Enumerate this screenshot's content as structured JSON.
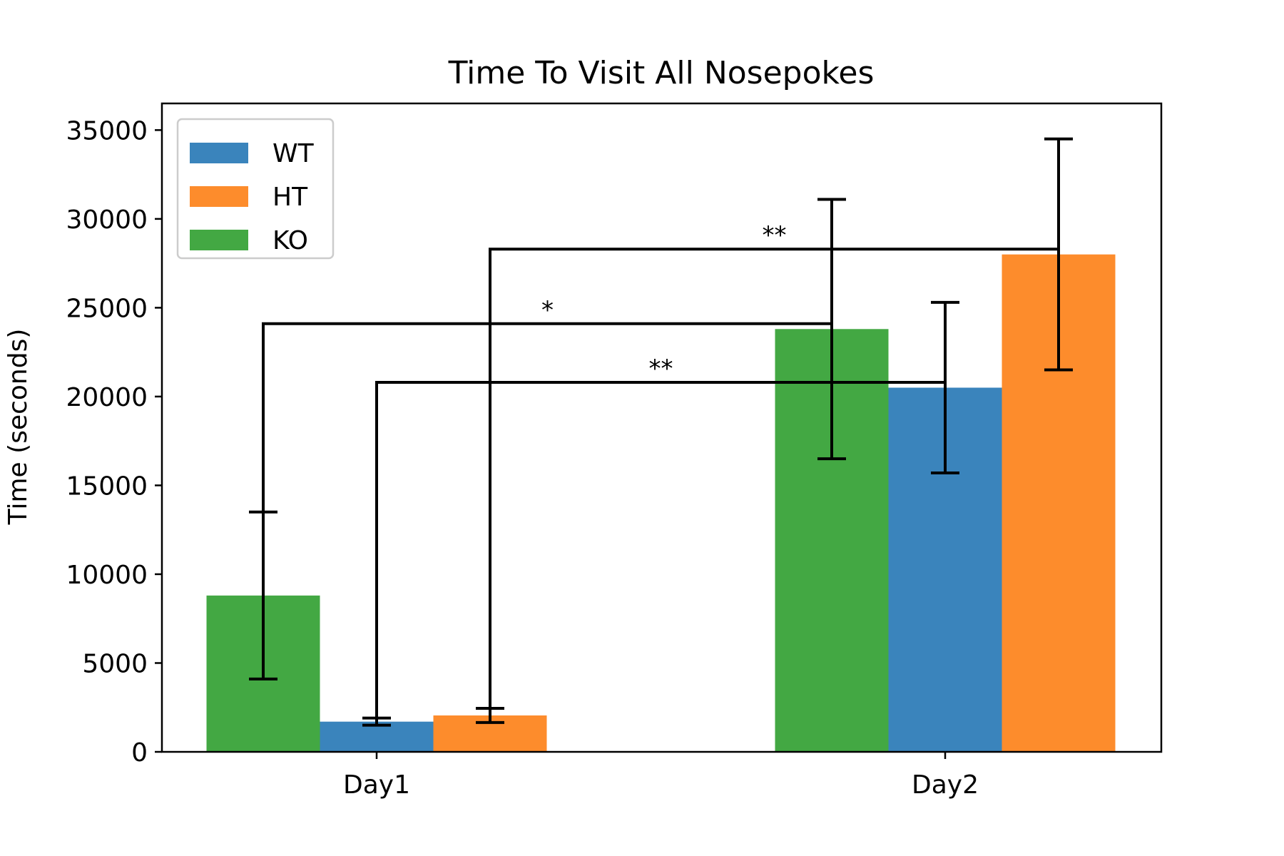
{
  "chart_data": {
    "type": "bar",
    "title": "Time To Visit All Nosepokes",
    "xlabel": "",
    "ylabel": "Time (seconds)",
    "ylim": [
      0,
      36500
    ],
    "yticks": [
      0,
      5000,
      10000,
      15000,
      20000,
      25000,
      30000,
      35000
    ],
    "categories": [
      "Day1",
      "Day2"
    ],
    "series": [
      {
        "name": "KO",
        "color": "#43a843",
        "values": [
          8800,
          23800
        ],
        "errors": [
          4700,
          7300
        ]
      },
      {
        "name": "WT",
        "color": "#3a84bc",
        "values": [
          1700,
          20500
        ],
        "errors": [
          200,
          4800
        ]
      },
      {
        "name": "HT",
        "color": "#fd8c2c",
        "values": [
          2050,
          28000
        ],
        "errors": [
          400,
          6500
        ]
      }
    ],
    "legend_order": [
      "WT",
      "HT",
      "KO"
    ],
    "legend_placement": "top-left",
    "grid": false,
    "significance": [
      {
        "label": "*",
        "series": "KO",
        "from": "Day1",
        "to": "Day2",
        "level": 24100
      },
      {
        "label": "**",
        "series": "WT",
        "from": "Day1",
        "to": "Day2",
        "level": 20800
      },
      {
        "label": "**",
        "series": "HT",
        "from": "Day1",
        "to": "Day2",
        "level": 28300
      }
    ]
  }
}
